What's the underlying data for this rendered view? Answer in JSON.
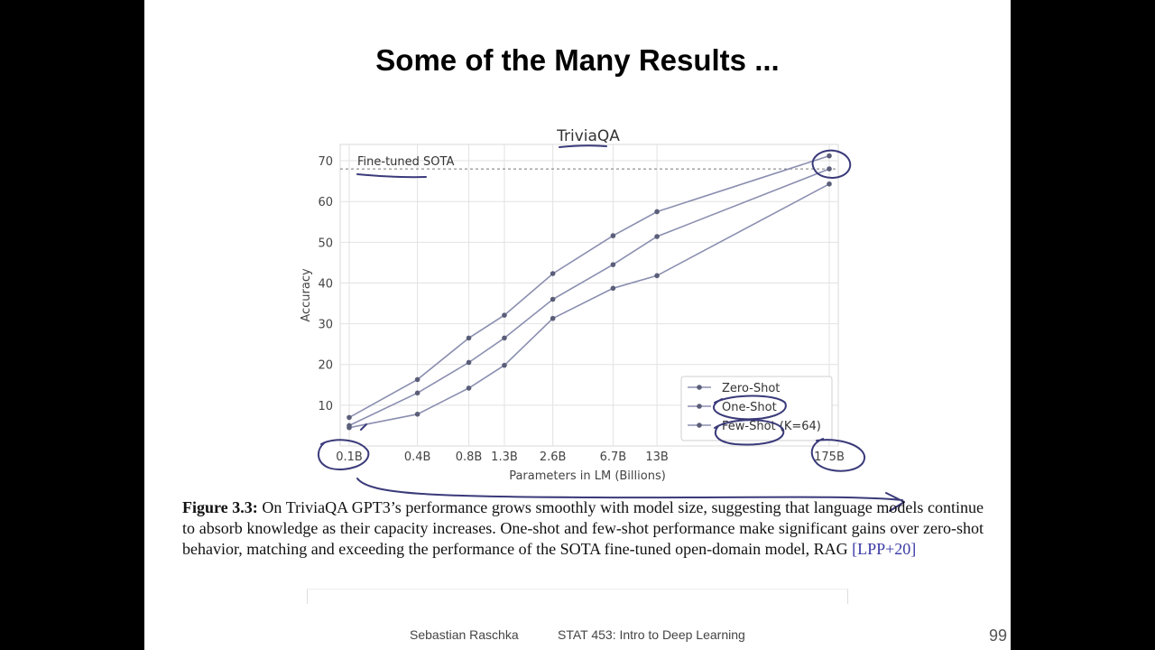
{
  "slide": {
    "title": "Some of the Many Results ...",
    "caption": {
      "label": "Figure 3.3:",
      "text": " On TriviaQA GPT3’s performance grows smoothly with model size, suggesting that language models continue to absorb knowledge as their capacity increases. One-shot and few-shot performance make significant gains over zero-shot behavior, matching and exceeding the performance of the SOTA fine-tuned open-domain model, RAG ",
      "citation": "[LPP+20]"
    },
    "footer": {
      "author": "Sebastian Raschka",
      "course": "STAT 453: Intro to Deep Learning",
      "page": "99"
    }
  },
  "colors": {
    "series_line": "#8b8fb0",
    "marker": "#5a5e78",
    "annotation_ink": "#3a3a7a",
    "grid": "#e2e2e2",
    "sota_line": "#777777"
  },
  "chart_data": {
    "type": "line",
    "title": "TriviaQA",
    "xlabel": "Parameters in LM (Billions)",
    "ylabel": "Accuracy",
    "x_scale": "log",
    "categories": [
      "0.1B",
      "0.4B",
      "0.8B",
      "1.3B",
      "2.6B",
      "6.7B",
      "13B",
      "175B"
    ],
    "x": [
      0.125,
      0.35,
      0.76,
      1.3,
      2.7,
      6.7,
      13,
      175
    ],
    "yticks": [
      10,
      20,
      30,
      40,
      50,
      60,
      70
    ],
    "ylim": [
      0,
      74
    ],
    "grid": true,
    "legend": "lower-right",
    "reference_line": {
      "label": "Fine-tuned SOTA",
      "value": 68
    },
    "series": [
      {
        "name": "Zero-Shot",
        "values": [
          4.5,
          7.8,
          14.2,
          19.8,
          31.3,
          38.7,
          41.8,
          64.3
        ]
      },
      {
        "name": "One-Shot",
        "values": [
          5.0,
          13.0,
          20.5,
          26.5,
          36.0,
          44.5,
          51.4,
          68.0
        ]
      },
      {
        "name": "Few-Shot (K=64)",
        "values": [
          7.0,
          16.3,
          26.5,
          32.1,
          42.3,
          51.6,
          57.5,
          71.2
        ]
      }
    ]
  }
}
